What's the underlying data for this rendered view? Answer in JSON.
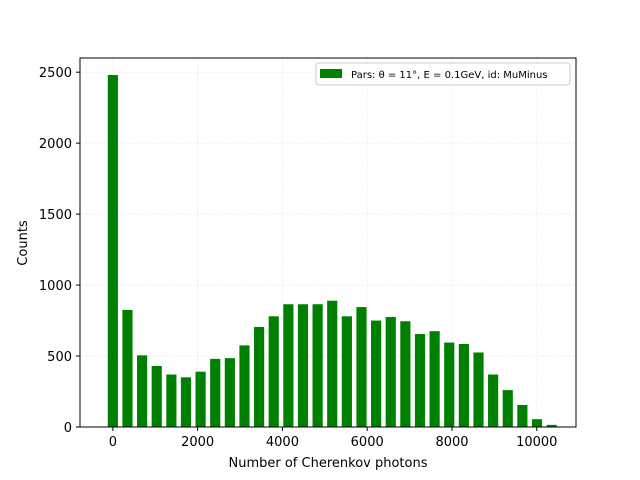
{
  "chart_data": {
    "type": "bar",
    "xlabel": "Number of Cherenkov photons",
    "ylabel": "Counts",
    "xlim": [
      -775,
      10925
    ],
    "ylim": [
      0,
      2600
    ],
    "xticks": [
      0,
      2000,
      4000,
      6000,
      8000,
      10000
    ],
    "yticks": [
      0,
      500,
      1000,
      1500,
      2000,
      2500
    ],
    "grid": true,
    "legend_position": "top-right",
    "bar_color": "#008000",
    "bar_width": 240,
    "series": [
      {
        "name": "Pars: θ = 11°, E = 0.1GeV, id: MuMinus",
        "x": [
          0,
          345,
          690,
          1035,
          1380,
          1725,
          2070,
          2415,
          2760,
          3105,
          3450,
          3795,
          4140,
          4485,
          4830,
          5175,
          5520,
          5865,
          6210,
          6555,
          6900,
          7245,
          7590,
          7935,
          8280,
          8625,
          8970,
          9315,
          9660,
          10005,
          10350
        ],
        "values": [
          2480,
          825,
          505,
          430,
          370,
          350,
          390,
          480,
          485,
          575,
          705,
          780,
          865,
          865,
          865,
          890,
          780,
          845,
          750,
          775,
          745,
          655,
          675,
          595,
          585,
          525,
          370,
          260,
          155,
          55,
          15
        ]
      }
    ]
  }
}
